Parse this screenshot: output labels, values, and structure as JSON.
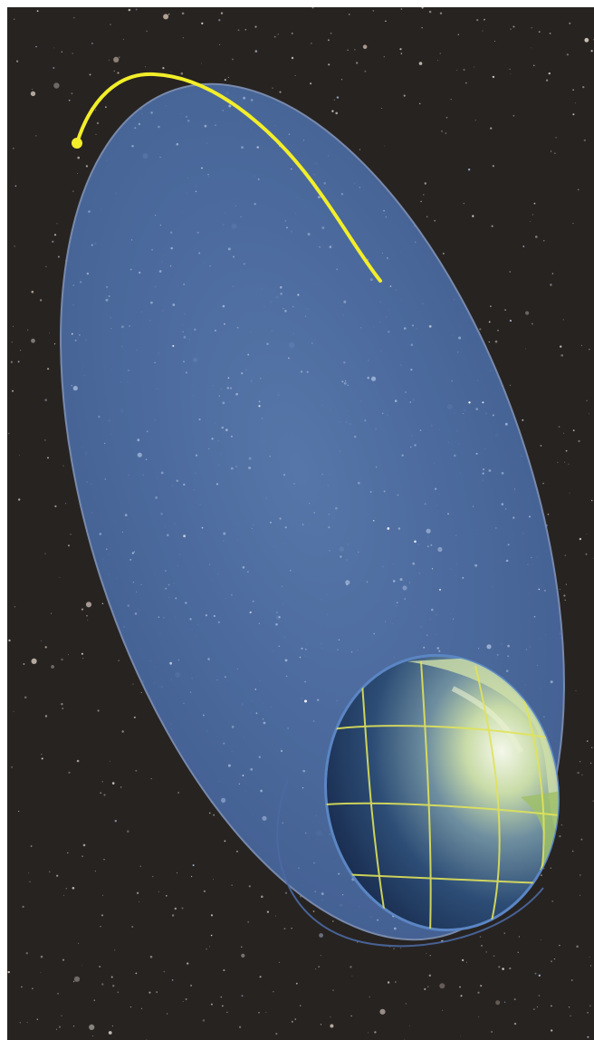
{
  "scene": {
    "subject": "elliptical-orbit-around-earth",
    "colors": {
      "space": "#272321",
      "orbit_fill": "#4e6fa6",
      "orbit_highlight": "#f2ee2a",
      "earth_ocean": "#2e4f7e",
      "earth_land": "#b9cc8a",
      "graticule": "#e0e35a"
    },
    "icons": [
      "star-icon",
      "satellite-marker-icon",
      "earth-globe-icon"
    ]
  }
}
